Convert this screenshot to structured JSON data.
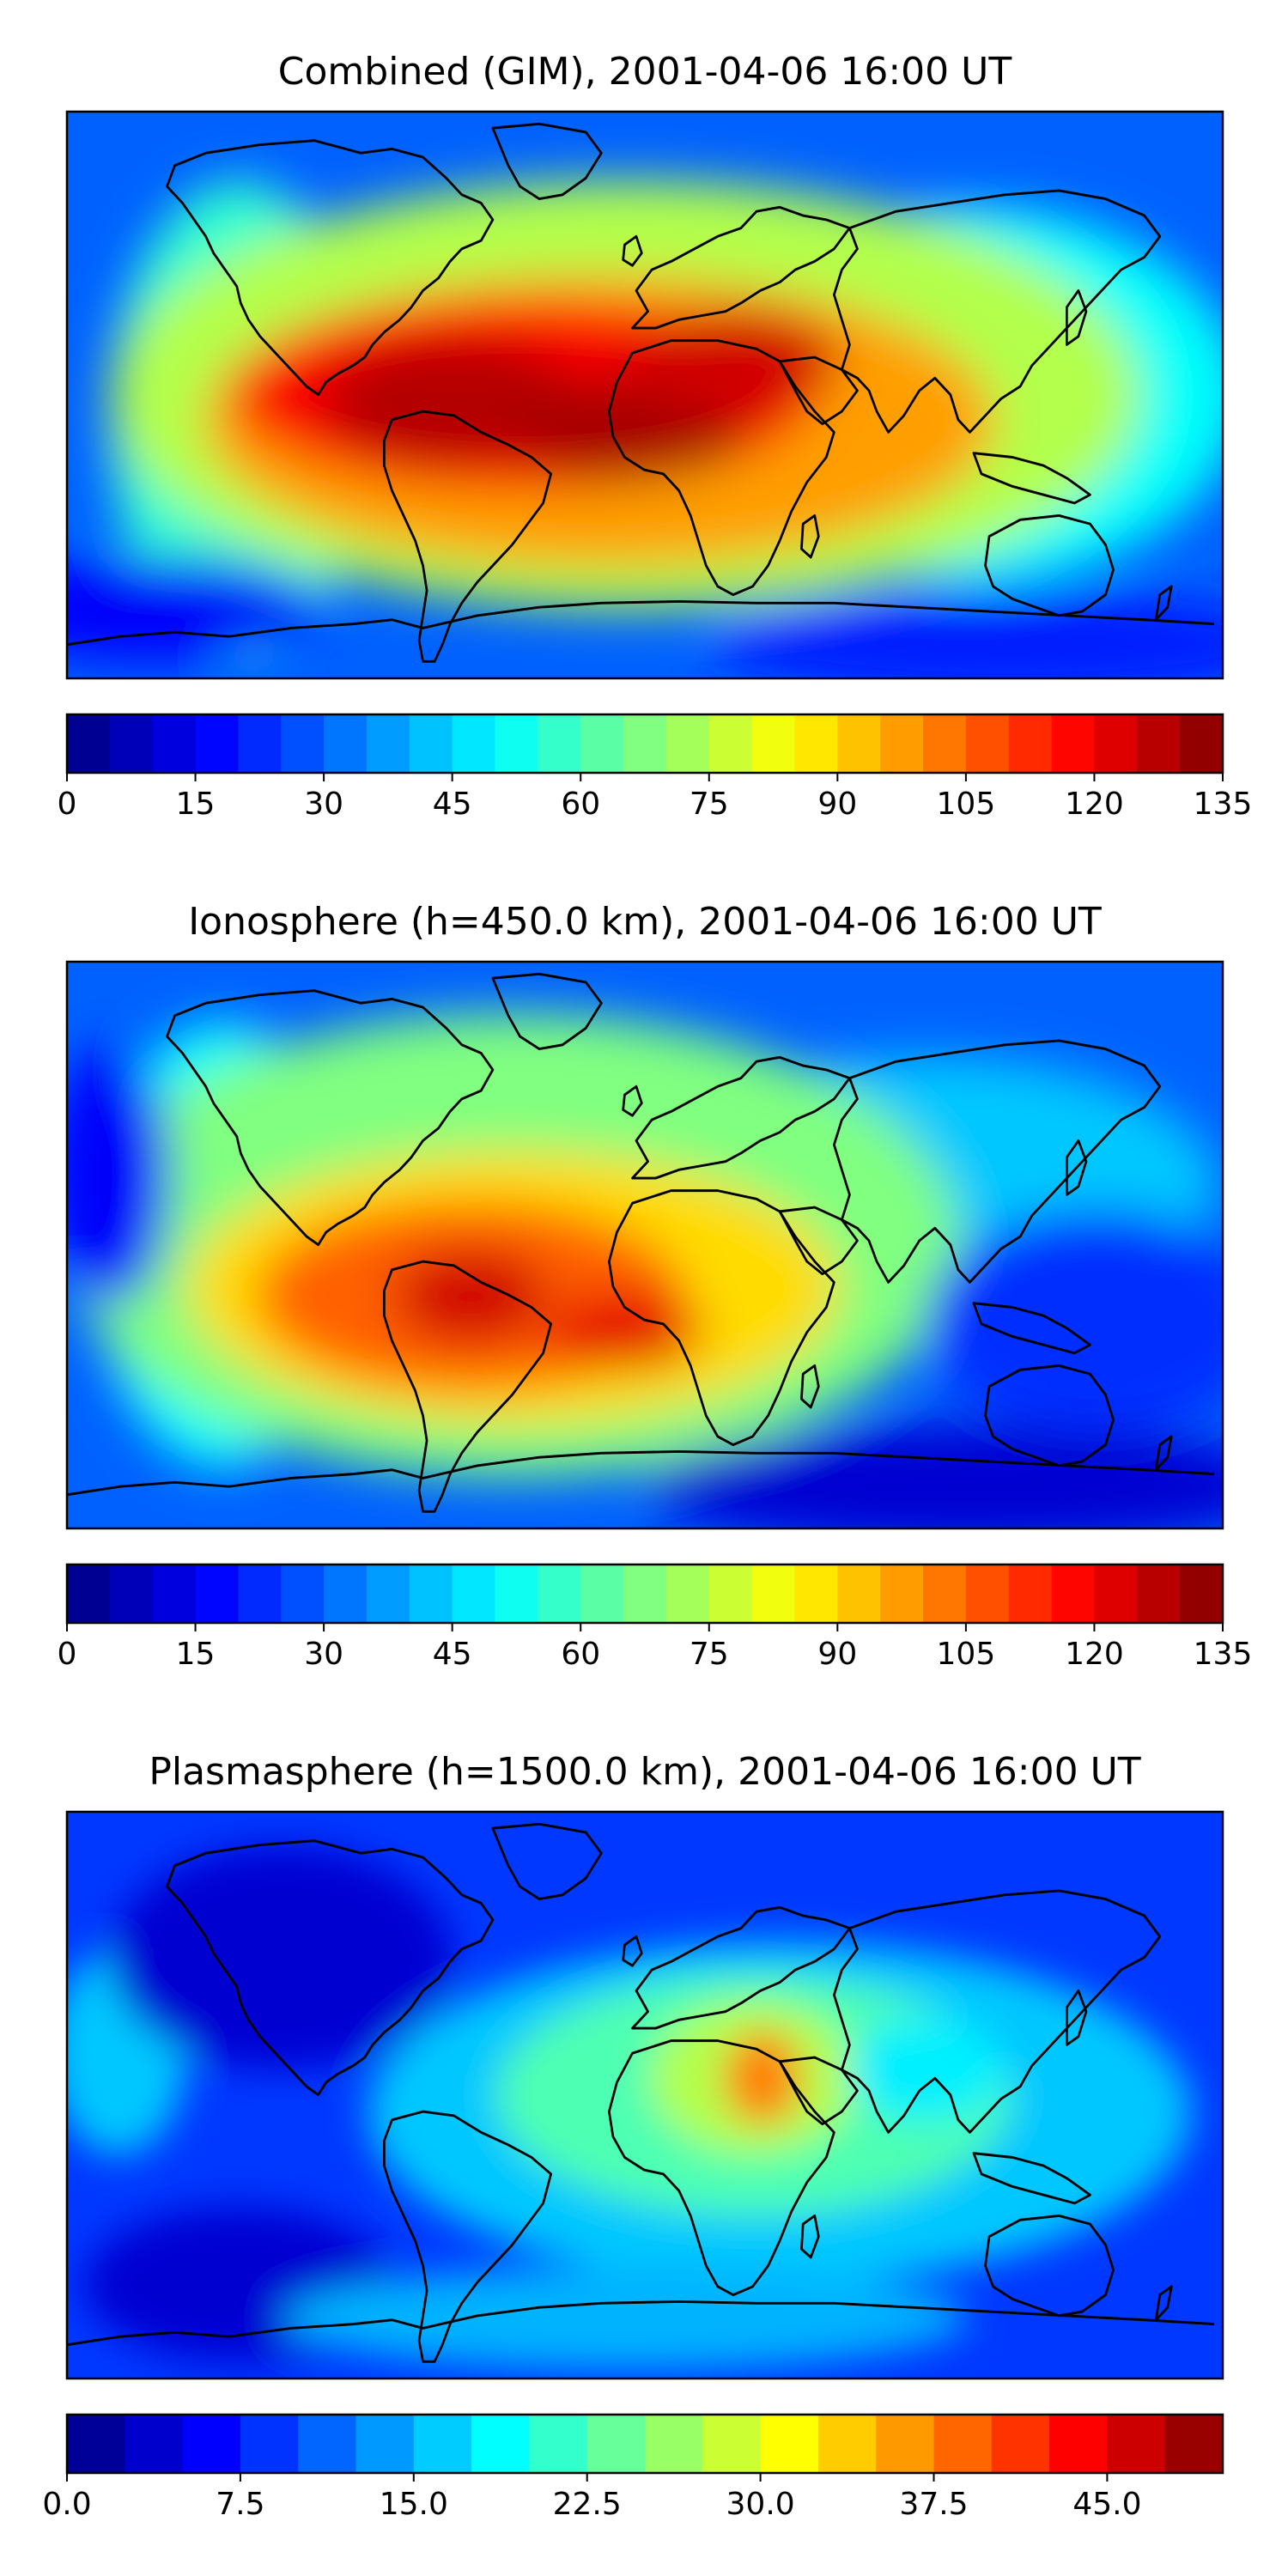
{
  "panels": [
    {
      "title": "Combined (GIM), 2001-04-06 16:00 UT",
      "colorbar_ticks": [
        "0",
        "15",
        "30",
        "45",
        "60",
        "75",
        "90",
        "105",
        "120",
        "135"
      ],
      "colorbar_range": [
        0,
        135
      ],
      "colorbar_levels": 27
    },
    {
      "title": "Ionosphere  (h=450.0 km), 2001-04-06 16:00 UT",
      "colorbar_ticks": [
        "0",
        "15",
        "30",
        "45",
        "60",
        "75",
        "90",
        "105",
        "120",
        "135"
      ],
      "colorbar_range": [
        0,
        135
      ],
      "colorbar_levels": 27
    },
    {
      "title": "Plasmasphere (h=1500.0 km), 2001-04-06 16:00 UT",
      "colorbar_ticks": [
        "0.0",
        "7.5",
        "15.0",
        "22.5",
        "30.0",
        "37.5",
        "45.0"
      ],
      "colorbar_range": [
        0,
        50
      ],
      "colorbar_levels": 20
    }
  ],
  "colormap": "jet"
}
